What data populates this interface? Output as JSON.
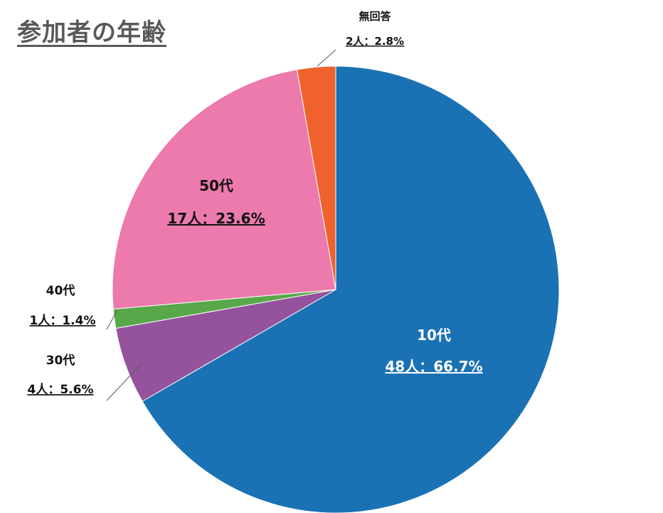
{
  "title": "参加者の年齢",
  "chart_data": {
    "type": "pie",
    "title": "参加者の年齢",
    "slices": [
      {
        "label": "10代",
        "count_label": "48人：66.7%",
        "value": 48,
        "percent": 66.7,
        "color": "#1a72b4"
      },
      {
        "label": "30代",
        "count_label": "4人：5.6%",
        "value": 4,
        "percent": 5.6,
        "color": "#94539c"
      },
      {
        "label": "40代",
        "count_label": "1人：1.4%",
        "value": 1,
        "percent": 1.4,
        "color": "#58a84a"
      },
      {
        "label": "50代",
        "count_label": "17人：23.6%",
        "value": 17,
        "percent": 23.6,
        "color": "#ec7aac"
      },
      {
        "label": "無回答",
        "count_label": "2人：2.8%",
        "value": 2,
        "percent": 2.8,
        "color": "#f0622d"
      }
    ]
  }
}
